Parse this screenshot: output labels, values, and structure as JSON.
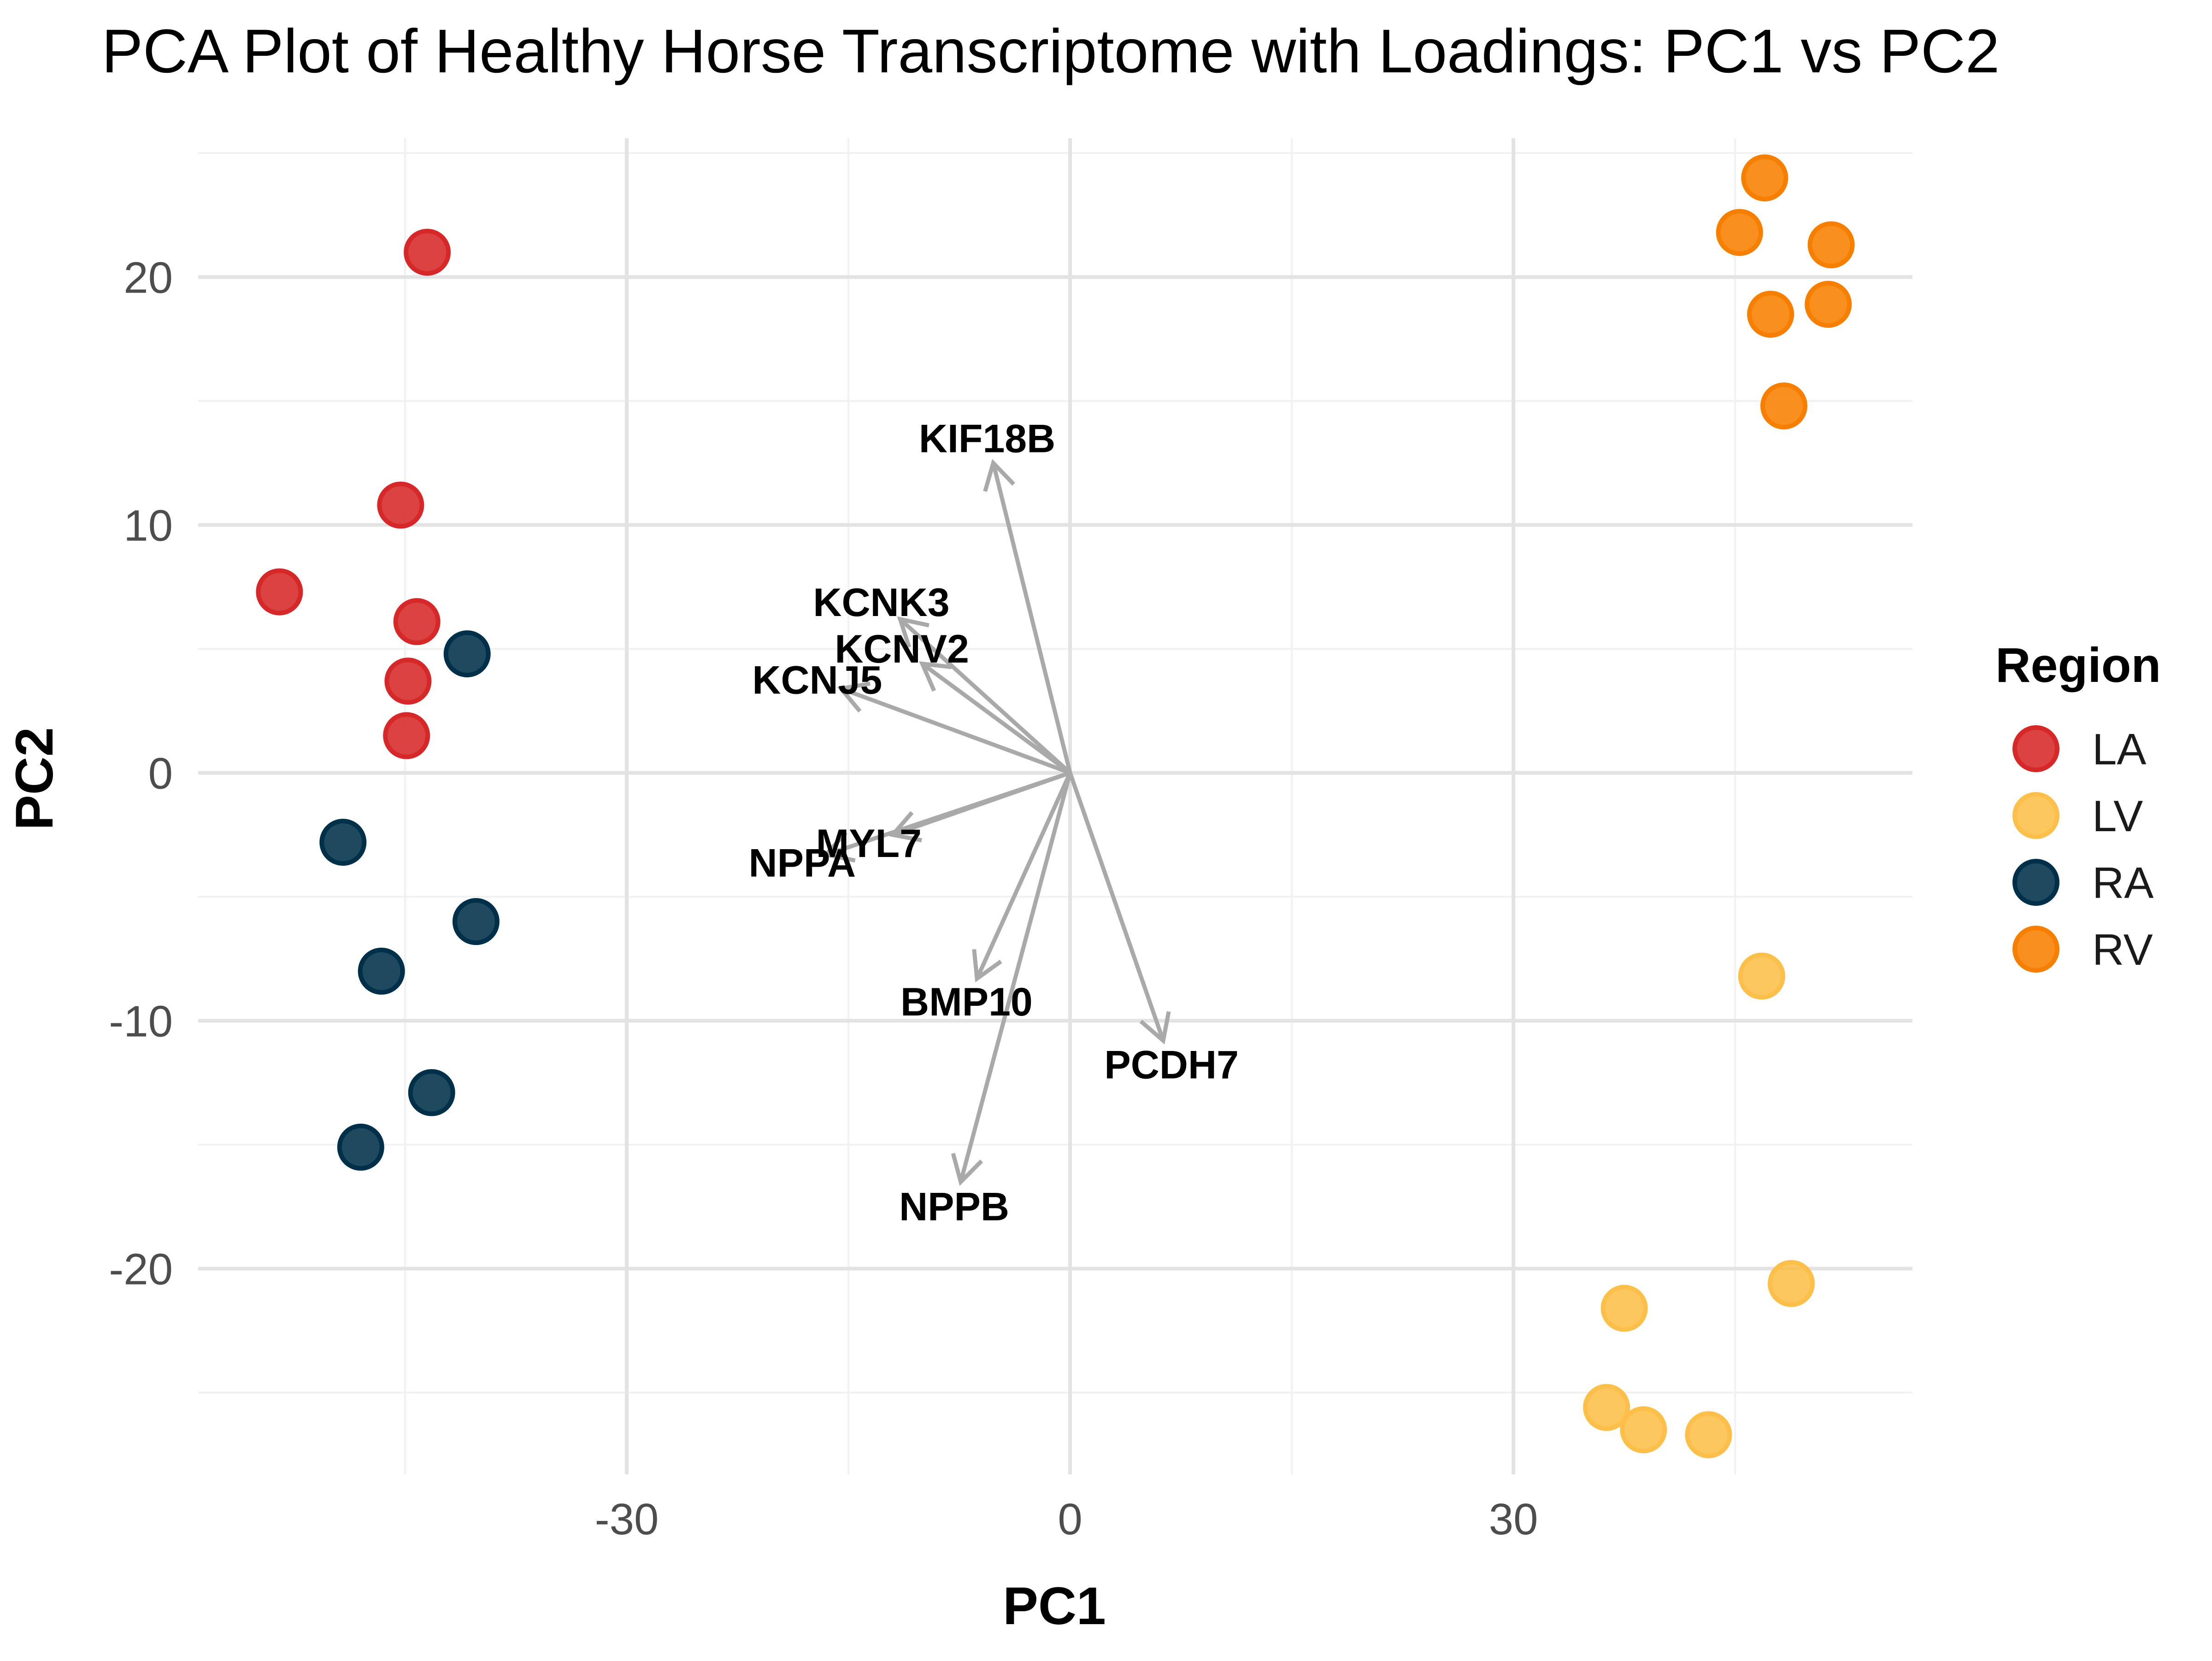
{
  "chart_data": {
    "type": "scatter",
    "title": "PCA Plot of Healthy Horse Transcriptome with Loadings: PC1 vs PC2",
    "xlabel": "PC1",
    "ylabel": "PC2",
    "xlim": [
      -59,
      57
    ],
    "ylim": [
      -28.3,
      25.6
    ],
    "x_ticks": [
      -30,
      0,
      30
    ],
    "x_tick_labels": [
      "-30",
      "0",
      "30"
    ],
    "y_ticks": [
      -20,
      -10,
      0,
      10,
      20
    ],
    "y_tick_labels": [
      "-20",
      "-10",
      "0",
      "10",
      "20"
    ],
    "x_minor_ticks": [
      -45,
      -15,
      15,
      45
    ],
    "y_minor_ticks": [
      -25,
      -15,
      -5,
      5,
      15,
      25
    ],
    "grid": true,
    "legend": {
      "title": "Region",
      "position": "right"
    },
    "series": [
      {
        "name": "LA",
        "color": "#D62828",
        "points": [
          [
            -43.5,
            21.0
          ],
          [
            -45.3,
            10.8
          ],
          [
            -53.5,
            7.3
          ],
          [
            -44.2,
            6.1
          ],
          [
            -44.8,
            3.7
          ],
          [
            -44.9,
            1.5
          ]
        ]
      },
      {
        "name": "LV",
        "color": "#FCBF49",
        "points": [
          [
            46.8,
            -8.2
          ],
          [
            48.8,
            -20.6
          ],
          [
            37.5,
            -21.6
          ],
          [
            36.3,
            -25.6
          ],
          [
            38.8,
            -26.5
          ],
          [
            43.2,
            -26.7
          ]
        ]
      },
      {
        "name": "RA",
        "color": "#003049",
        "points": [
          [
            -40.8,
            4.8
          ],
          [
            -49.2,
            -2.8
          ],
          [
            -40.2,
            -6.0
          ],
          [
            -46.6,
            -8.0
          ],
          [
            -43.2,
            -12.9
          ],
          [
            -48.0,
            -15.1
          ]
        ]
      },
      {
        "name": "RV",
        "color": "#F77F00",
        "points": [
          [
            47.0,
            24.0
          ],
          [
            45.3,
            21.8
          ],
          [
            51.5,
            21.3
          ],
          [
            51.3,
            18.9
          ],
          [
            47.4,
            18.5
          ],
          [
            48.3,
            14.8
          ]
        ]
      }
    ],
    "loadings": [
      {
        "gene": "KIF18B",
        "x": -5.2,
        "y": 12.5
      },
      {
        "gene": "KCNK3",
        "x": -11.5,
        "y": 6.2
      },
      {
        "gene": "KCNV2",
        "x": -10.0,
        "y": 4.4
      },
      {
        "gene": "KCNJ5",
        "x": -15.5,
        "y": 3.4
      },
      {
        "gene": "MYL7",
        "x": -12.0,
        "y": -2.5
      },
      {
        "gene": "NPPA",
        "x": -16.5,
        "y": -3.3
      },
      {
        "gene": "BMP10",
        "x": -6.3,
        "y": -8.3
      },
      {
        "gene": "PCDH7",
        "x": 6.3,
        "y": -10.8
      },
      {
        "gene": "NPPB",
        "x": -7.4,
        "y": -16.5
      }
    ]
  }
}
